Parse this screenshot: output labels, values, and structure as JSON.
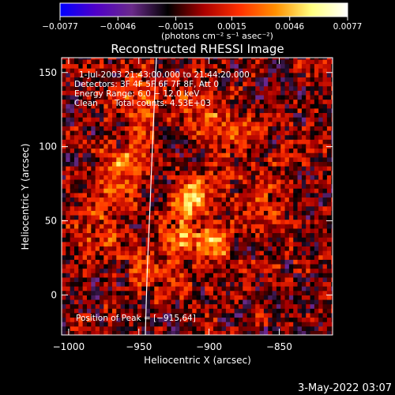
{
  "chart_data": {
    "type": "heatmap",
    "title": "Reconstructed RHESSI Image",
    "xlabel": "Heliocentric X (arcsec)",
    "ylabel": "Heliocentric Y (arcsec)",
    "xlim": [
      -1005,
      -812
    ],
    "ylim": [
      -27,
      160
    ],
    "x_ticks": [
      -1000,
      -950,
      -900,
      -850
    ],
    "x_tick_labels": [
      "−1000",
      "−950",
      "−900",
      "−850"
    ],
    "y_ticks": [
      0,
      50,
      100,
      150
    ],
    "y_tick_labels": [
      "0",
      "50",
      "100",
      "150"
    ],
    "colorbar": {
      "min": -0.0077,
      "max": 0.0077,
      "tick_values": [
        -0.0077,
        -0.0046,
        -0.0015,
        0.0015,
        0.0046,
        0.0077
      ],
      "tick_labels": [
        "−0.0077",
        "−0.0046",
        "−0.0015",
        "0.0015",
        "0.0046",
        "0.0077"
      ],
      "units_label": "(photons cm⁻² s⁻¹ asec⁻²)",
      "colormap": [
        "#0000ff",
        "#5000c8",
        "#6a2a8a",
        "#000000",
        "#aa0000",
        "#ff3000",
        "#ff9000",
        "#ffff80",
        "#ffffff"
      ]
    },
    "annotations": {
      "time": "1-Jul-2003 21:43:00.000 to 21:44:20.000",
      "detectors": "Detectors: 3F 4F 5F 6F 7F 8F, Att 0",
      "energy": "Energy Range: 6.0 − 12.0 keV",
      "clean": "Clean",
      "counts": "Total counts: 4.53E+03",
      "peak": "Position of Peak = [−915,64]"
    },
    "peak": [
      -915,
      64
    ],
    "sources": [
      {
        "x": -913,
        "y": 64,
        "amp": 1.0,
        "sigma": 9
      },
      {
        "x": -898,
        "y": 33,
        "amp": 0.85,
        "sigma": 8
      },
      {
        "x": -925,
        "y": 38,
        "amp": 0.55,
        "sigma": 9
      },
      {
        "x": -960,
        "y": 86,
        "amp": 0.5,
        "sigma": 11
      },
      {
        "x": -950,
        "y": 130,
        "amp": 0.45,
        "sigma": 13
      },
      {
        "x": -905,
        "y": 120,
        "amp": 0.4,
        "sigma": 12
      },
      {
        "x": -975,
        "y": 35,
        "amp": 0.4,
        "sigma": 12
      },
      {
        "x": -975,
        "y": 65,
        "amp": 0.35,
        "sigma": 12
      },
      {
        "x": -940,
        "y": 10,
        "amp": 0.3,
        "sigma": 14
      },
      {
        "x": -860,
        "y": 60,
        "amp": 0.3,
        "sigma": 14
      },
      {
        "x": -880,
        "y": 105,
        "amp": 0.25,
        "sigma": 13
      }
    ],
    "grid": false
  },
  "footer": {
    "date": "3-May-2022 03:07"
  }
}
